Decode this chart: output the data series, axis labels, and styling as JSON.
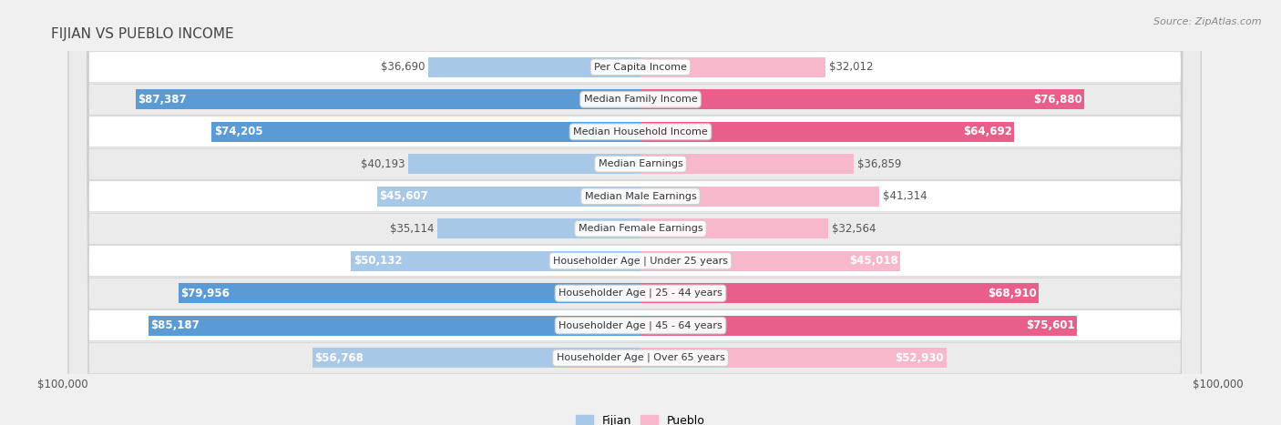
{
  "title": "FIJIAN VS PUEBLO INCOME",
  "source": "Source: ZipAtlas.com",
  "categories": [
    "Per Capita Income",
    "Median Family Income",
    "Median Household Income",
    "Median Earnings",
    "Median Male Earnings",
    "Median Female Earnings",
    "Householder Age | Under 25 years",
    "Householder Age | 25 - 44 years",
    "Householder Age | 45 - 64 years",
    "Householder Age | Over 65 years"
  ],
  "fijian": [
    36690,
    87387,
    74205,
    40193,
    45607,
    35114,
    50132,
    79956,
    85187,
    56768
  ],
  "pueblo": [
    32012,
    76880,
    64692,
    36859,
    41314,
    32564,
    45018,
    68910,
    75601,
    52930
  ],
  "fijian_labels": [
    "$36,690",
    "$87,387",
    "$74,205",
    "$40,193",
    "$45,607",
    "$35,114",
    "$50,132",
    "$79,956",
    "$85,187",
    "$56,768"
  ],
  "pueblo_labels": [
    "$32,012",
    "$76,880",
    "$64,692",
    "$36,859",
    "$41,314",
    "$32,564",
    "$45,018",
    "$68,910",
    "$75,601",
    "$52,930"
  ],
  "max_val": 100000,
  "fijian_color_light": "#a8c8e8",
  "fijian_color_dark": "#5b9bd5",
  "pueblo_color_light": "#f8b8cc",
  "pueblo_color_dark": "#e8608a",
  "bg_color": "#f0f0f0",
  "row_colors": [
    "#ffffff",
    "#ebebeb"
  ],
  "bar_height": 0.62,
  "title_fontsize": 11,
  "label_fontsize": 8.5,
  "cat_fontsize": 8,
  "legend_fontsize": 9,
  "inside_label_threshold": 45000
}
